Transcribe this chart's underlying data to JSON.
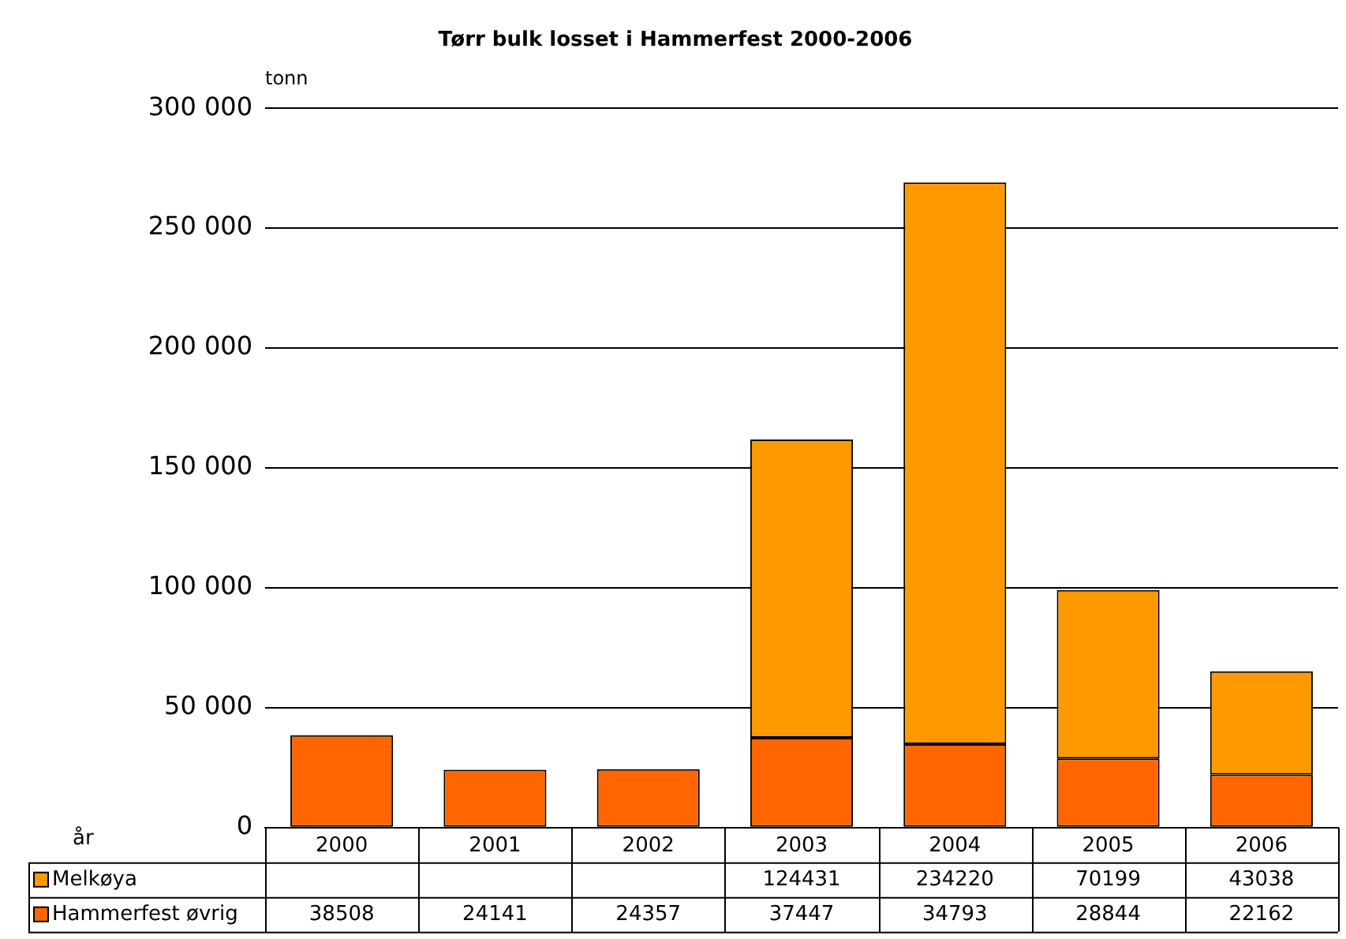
{
  "chart_data": {
    "type": "bar",
    "title": "Tørr bulk losset i Hammerfest 2000-2006",
    "xlabel": "år",
    "ylabel": "tonn",
    "categories": [
      "2000",
      "2001",
      "2002",
      "2003",
      "2004",
      "2005",
      "2006"
    ],
    "series": [
      {
        "name": "Hammerfest øvrig",
        "color": "#ff6600",
        "values": [
          38508,
          24141,
          24357,
          37447,
          34793,
          28844,
          22162
        ]
      },
      {
        "name": "Melkøya",
        "color": "#ff9900",
        "values": [
          null,
          null,
          null,
          124431,
          234220,
          70199,
          43038
        ]
      }
    ],
    "stacked": true,
    "ylim": [
      0,
      300000
    ],
    "yticks": [
      {
        "value": 0,
        "label": "0"
      },
      {
        "value": 50000,
        "label": "50 000"
      },
      {
        "value": 100000,
        "label": "100 000"
      },
      {
        "value": 150000,
        "label": "150 000"
      },
      {
        "value": 200000,
        "label": "200 000"
      },
      {
        "value": 250000,
        "label": "250 000"
      },
      {
        "value": 300000,
        "label": "300 000"
      }
    ],
    "grid": "y",
    "legend": "bottom",
    "data_labels": true
  }
}
